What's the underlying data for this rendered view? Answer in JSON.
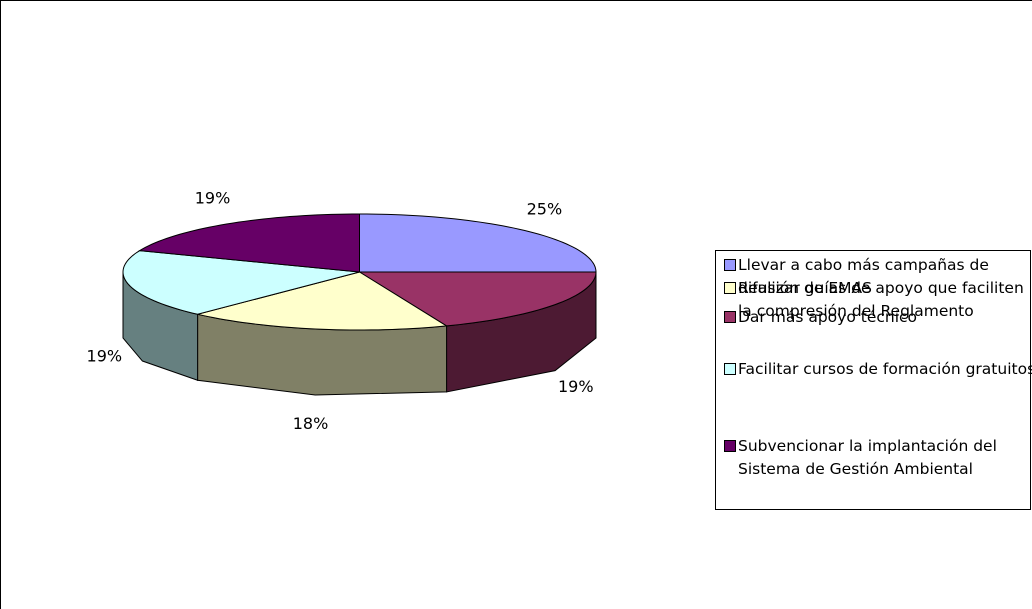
{
  "chart_data": {
    "type": "pie",
    "categories": [
      "Llevar a cabo más campañas de difusión de EMAS",
      "Dar más apoyo técnico",
      "Realizar guías de apoyo que faciliten la compresión del Reglamento",
      "Facilitar cursos de formación gratuitos",
      "Subvencionar la implantación del Sistema de Gestión Ambiental"
    ],
    "values": [
      25,
      19,
      18,
      19,
      19
    ],
    "value_labels": [
      "25%",
      "19%",
      "18%",
      "19%",
      "19%"
    ],
    "colors": [
      "#9999ff",
      "#993366",
      "#ffffcc",
      "#ccffff",
      "#660066"
    ],
    "legend": "right"
  }
}
